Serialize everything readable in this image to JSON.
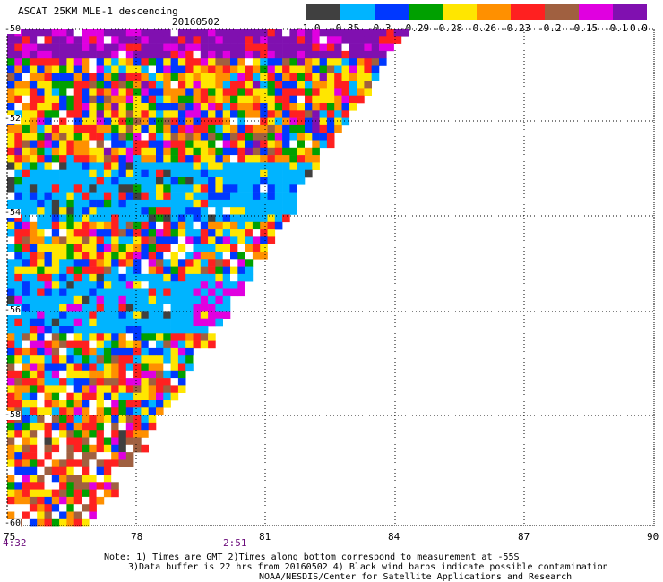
{
  "header": {
    "title": "ASCAT 25KM MLE-1 descending",
    "date": "20160502"
  },
  "colorbar": {
    "colors": [
      "#404040",
      "#00b4ff",
      "#0038ff",
      "#00a000",
      "#ffe600",
      "#ff9000",
      "#ff2020",
      "#a06040",
      "#e000e0",
      "#8010b0"
    ],
    "labels": [
      "-1.0",
      "-0.35",
      "-0.3",
      "-0.29",
      "-0.28",
      "-0.26",
      "-0.23",
      "-0.2",
      "-0.15",
      "-0.1",
      "0.0"
    ]
  },
  "map": {
    "lat_labels": [
      "-50",
      "-52",
      "-54",
      "-56",
      "-58",
      "-60"
    ],
    "lon_labels": [
      "75",
      "78",
      "81",
      "84",
      "87",
      "90"
    ],
    "time_labels": [
      "4:32",
      "2:51"
    ],
    "lon_range": [
      75,
      90
    ],
    "lat_range": [
      -60,
      -50
    ],
    "swath_edge_color": "#000000",
    "grid": "dotted"
  },
  "notes": {
    "line1": "Note: 1) Times are GMT 2)Times along bottom correspond to measurement at -55S",
    "line2": "3)Data buffer is 22 hrs from 20160502 4) Black wind barbs indicate possible contamination",
    "line3": "NOAA/NESDIS/Center for Satellite Applications and Research"
  }
}
